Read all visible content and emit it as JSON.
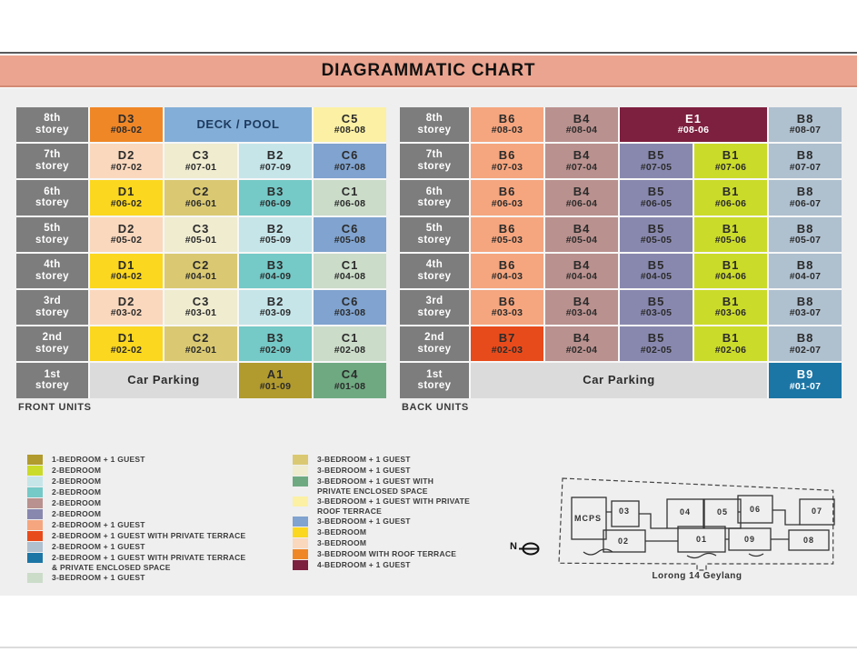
{
  "title": "DIAGRAMMATIC CHART",
  "storey_word": "storey",
  "palette": {
    "A1": "#B19A2E",
    "B1": "#CBDB2A",
    "B2": "#C6E5E9",
    "B3": "#75C9C7",
    "B4": "#B9918E",
    "B5": "#8888AF",
    "B6": "#F5A67F",
    "B7": "#E84B1B",
    "B8": "#AFC0CF",
    "B9": "#1C76A5",
    "C1": "#CBDCC9",
    "C2": "#DAC972",
    "C3": "#EFECD0",
    "C4": "#6FA982",
    "C5": "#FBF0A4",
    "C6": "#80A3CF",
    "D1": "#FBD71F",
    "D2": "#FAD8BD",
    "D3": "#EF8727",
    "E1": "#7D1F3E",
    "deck": "#83AED7",
    "parking": "#DBDBDB"
  },
  "light_text_keys": [
    "E1",
    "B9"
  ],
  "deck_text_color": "#1E3A5E",
  "front": {
    "section_label": "FRONT UNITS",
    "rows": [
      {
        "storey": "8th",
        "cells": [
          {
            "unit": "D3",
            "num": "#08-02",
            "color": "D3"
          },
          {
            "label": "DECK / POOL",
            "color": "deck",
            "span": 2
          },
          {
            "unit": "C5",
            "num": "#08-08",
            "color": "C5"
          }
        ]
      },
      {
        "storey": "7th",
        "cells": [
          {
            "unit": "D2",
            "num": "#07-02",
            "color": "D2"
          },
          {
            "unit": "C3",
            "num": "#07-01",
            "color": "C3"
          },
          {
            "unit": "B2",
            "num": "#07-09",
            "color": "B2"
          },
          {
            "unit": "C6",
            "num": "#07-08",
            "color": "C6"
          }
        ]
      },
      {
        "storey": "6th",
        "cells": [
          {
            "unit": "D1",
            "num": "#06-02",
            "color": "D1"
          },
          {
            "unit": "C2",
            "num": "#06-01",
            "color": "C2"
          },
          {
            "unit": "B3",
            "num": "#06-09",
            "color": "B3"
          },
          {
            "unit": "C1",
            "num": "#06-08",
            "color": "C1"
          }
        ]
      },
      {
        "storey": "5th",
        "cells": [
          {
            "unit": "D2",
            "num": "#05-02",
            "color": "D2"
          },
          {
            "unit": "C3",
            "num": "#05-01",
            "color": "C3"
          },
          {
            "unit": "B2",
            "num": "#05-09",
            "color": "B2"
          },
          {
            "unit": "C6",
            "num": "#05-08",
            "color": "C6"
          }
        ]
      },
      {
        "storey": "4th",
        "cells": [
          {
            "unit": "D1",
            "num": "#04-02",
            "color": "D1"
          },
          {
            "unit": "C2",
            "num": "#04-01",
            "color": "C2"
          },
          {
            "unit": "B3",
            "num": "#04-09",
            "color": "B3"
          },
          {
            "unit": "C1",
            "num": "#04-08",
            "color": "C1"
          }
        ]
      },
      {
        "storey": "3rd",
        "cells": [
          {
            "unit": "D2",
            "num": "#03-02",
            "color": "D2"
          },
          {
            "unit": "C3",
            "num": "#03-01",
            "color": "C3"
          },
          {
            "unit": "B2",
            "num": "#03-09",
            "color": "B2"
          },
          {
            "unit": "C6",
            "num": "#03-08",
            "color": "C6"
          }
        ]
      },
      {
        "storey": "2nd",
        "cells": [
          {
            "unit": "D1",
            "num": "#02-02",
            "color": "D1"
          },
          {
            "unit": "C2",
            "num": "#02-01",
            "color": "C2"
          },
          {
            "unit": "B3",
            "num": "#02-09",
            "color": "B3"
          },
          {
            "unit": "C1",
            "num": "#02-08",
            "color": "C1"
          }
        ]
      },
      {
        "storey": "1st",
        "cells": [
          {
            "label": "Car Parking",
            "color": "parking",
            "span": 2
          },
          {
            "unit": "A1",
            "num": "#01-09",
            "color": "A1"
          },
          {
            "unit": "C4",
            "num": "#01-08",
            "color": "C4"
          }
        ]
      }
    ]
  },
  "back": {
    "section_label": "BACK UNITS",
    "rows": [
      {
        "storey": "8th",
        "cells": [
          {
            "unit": "B6",
            "num": "#08-03",
            "color": "B6"
          },
          {
            "unit": "B4",
            "num": "#08-04",
            "color": "B4"
          },
          {
            "unit": "E1",
            "num": "#08-06",
            "color": "E1",
            "span": 2
          },
          {
            "unit": "B8",
            "num": "#08-07",
            "color": "B8"
          }
        ]
      },
      {
        "storey": "7th",
        "cells": [
          {
            "unit": "B6",
            "num": "#07-03",
            "color": "B6"
          },
          {
            "unit": "B4",
            "num": "#07-04",
            "color": "B4"
          },
          {
            "unit": "B5",
            "num": "#07-05",
            "color": "B5"
          },
          {
            "unit": "B1",
            "num": "#07-06",
            "color": "B1"
          },
          {
            "unit": "B8",
            "num": "#07-07",
            "color": "B8"
          }
        ]
      },
      {
        "storey": "6th",
        "cells": [
          {
            "unit": "B6",
            "num": "#06-03",
            "color": "B6"
          },
          {
            "unit": "B4",
            "num": "#06-04",
            "color": "B4"
          },
          {
            "unit": "B5",
            "num": "#06-05",
            "color": "B5"
          },
          {
            "unit": "B1",
            "num": "#06-06",
            "color": "B1"
          },
          {
            "unit": "B8",
            "num": "#06-07",
            "color": "B8"
          }
        ]
      },
      {
        "storey": "5th",
        "cells": [
          {
            "unit": "B6",
            "num": "#05-03",
            "color": "B6"
          },
          {
            "unit": "B4",
            "num": "#05-04",
            "color": "B4"
          },
          {
            "unit": "B5",
            "num": "#05-05",
            "color": "B5"
          },
          {
            "unit": "B1",
            "num": "#05-06",
            "color": "B1"
          },
          {
            "unit": "B8",
            "num": "#05-07",
            "color": "B8"
          }
        ]
      },
      {
        "storey": "4th",
        "cells": [
          {
            "unit": "B6",
            "num": "#04-03",
            "color": "B6"
          },
          {
            "unit": "B4",
            "num": "#04-04",
            "color": "B4"
          },
          {
            "unit": "B5",
            "num": "#04-05",
            "color": "B5"
          },
          {
            "unit": "B1",
            "num": "#04-06",
            "color": "B1"
          },
          {
            "unit": "B8",
            "num": "#04-07",
            "color": "B8"
          }
        ]
      },
      {
        "storey": "3rd",
        "cells": [
          {
            "unit": "B6",
            "num": "#03-03",
            "color": "B6"
          },
          {
            "unit": "B4",
            "num": "#03-04",
            "color": "B4"
          },
          {
            "unit": "B5",
            "num": "#03-05",
            "color": "B5"
          },
          {
            "unit": "B1",
            "num": "#03-06",
            "color": "B1"
          },
          {
            "unit": "B8",
            "num": "#03-07",
            "color": "B8"
          }
        ]
      },
      {
        "storey": "2nd",
        "cells": [
          {
            "unit": "B7",
            "num": "#02-03",
            "color": "B7"
          },
          {
            "unit": "B4",
            "num": "#02-04",
            "color": "B4"
          },
          {
            "unit": "B5",
            "num": "#02-05",
            "color": "B5"
          },
          {
            "unit": "B1",
            "num": "#02-06",
            "color": "B1"
          },
          {
            "unit": "B8",
            "num": "#02-07",
            "color": "B8"
          }
        ]
      },
      {
        "storey": "1st",
        "cells": [
          {
            "label": "Car Parking",
            "color": "parking",
            "span": 4
          },
          {
            "unit": "B9",
            "num": "#01-07",
            "color": "B9"
          }
        ]
      }
    ]
  },
  "legend": {
    "left": [
      {
        "color": "A1",
        "label": "1-BEDROOM + 1 GUEST"
      },
      {
        "color": "B1",
        "label": "2-BEDROOM"
      },
      {
        "color": "B2",
        "label": "2-BEDROOM"
      },
      {
        "color": "B3",
        "label": "2-BEDROOM"
      },
      {
        "color": "B4",
        "label": "2-BEDROOM"
      },
      {
        "color": "B5",
        "label": "2-BEDROOM"
      },
      {
        "color": "B6",
        "label": "2-BEDROOM + 1 GUEST"
      },
      {
        "color": "B7",
        "label": "2-BEDROOM + 1 GUEST WITH PRIVATE TERRACE"
      },
      {
        "color": "B8",
        "label": "2-BEDROOM + 1 GUEST"
      },
      {
        "color": "B9",
        "label": "2-BEDROOM + 1 GUEST WITH PRIVATE TERRACE\n& PRIVATE ENCLOSED SPACE"
      },
      {
        "color": "C1",
        "label": "3-BEDROOM + 1 GUEST"
      }
    ],
    "right": [
      {
        "color": "C2",
        "label": "3-BEDROOM + 1 GUEST"
      },
      {
        "color": "C3",
        "label": "3-BEDROOM + 1 GUEST"
      },
      {
        "color": "C4",
        "label": "3-BEDROOM + 1 GUEST WITH\nPRIVATE ENCLOSED SPACE"
      },
      {
        "color": "C5",
        "label": "3-BEDROOM + 1 GUEST WITH PRIVATE\nROOF TERRACE"
      },
      {
        "color": "C6",
        "label": "3-BEDROOM + 1 GUEST"
      },
      {
        "color": "D1",
        "label": "3-BEDROOM"
      },
      {
        "color": "D2",
        "label": "3-BEDROOM"
      },
      {
        "color": "D3",
        "label": "3-BEDROOM WITH ROOF TERRACE"
      },
      {
        "color": "E1",
        "label": "4-BEDROOM + 1 GUEST"
      }
    ]
  },
  "sitemap": {
    "north_label": "N",
    "street": "Lorong 14 Geylang",
    "units": [
      "MCPS",
      "03",
      "04",
      "05",
      "06",
      "07",
      "02",
      "01",
      "09",
      "08"
    ]
  }
}
